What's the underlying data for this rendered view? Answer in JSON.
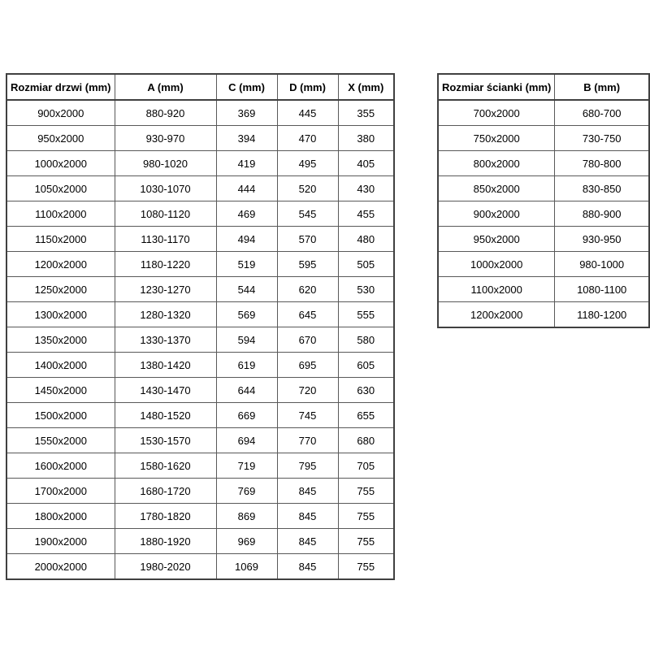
{
  "page": {
    "background_color": "#ffffff",
    "border_color": "#595959",
    "outer_border_color": "#404040",
    "text_color": "#000000"
  },
  "door_table": {
    "headers": [
      "Rozmiar drzwi (mm)",
      "A (mm)",
      "C (mm)",
      "D (mm)",
      "X (mm)"
    ],
    "rows": [
      [
        "900x2000",
        "880-920",
        "369",
        "445",
        "355"
      ],
      [
        "950x2000",
        "930-970",
        "394",
        "470",
        "380"
      ],
      [
        "1000x2000",
        "980-1020",
        "419",
        "495",
        "405"
      ],
      [
        "1050x2000",
        "1030-1070",
        "444",
        "520",
        "430"
      ],
      [
        "1100x2000",
        "1080-1120",
        "469",
        "545",
        "455"
      ],
      [
        "1150x2000",
        "1130-1170",
        "494",
        "570",
        "480"
      ],
      [
        "1200x2000",
        "1180-1220",
        "519",
        "595",
        "505"
      ],
      [
        "1250x2000",
        "1230-1270",
        "544",
        "620",
        "530"
      ],
      [
        "1300x2000",
        "1280-1320",
        "569",
        "645",
        "555"
      ],
      [
        "1350x2000",
        "1330-1370",
        "594",
        "670",
        "580"
      ],
      [
        "1400x2000",
        "1380-1420",
        "619",
        "695",
        "605"
      ],
      [
        "1450x2000",
        "1430-1470",
        "644",
        "720",
        "630"
      ],
      [
        "1500x2000",
        "1480-1520",
        "669",
        "745",
        "655"
      ],
      [
        "1550x2000",
        "1530-1570",
        "694",
        "770",
        "680"
      ],
      [
        "1600x2000",
        "1580-1620",
        "719",
        "795",
        "705"
      ],
      [
        "1700x2000",
        "1680-1720",
        "769",
        "845",
        "755"
      ],
      [
        "1800x2000",
        "1780-1820",
        "869",
        "845",
        "755"
      ],
      [
        "1900x2000",
        "1880-1920",
        "969",
        "845",
        "755"
      ],
      [
        "2000x2000",
        "1980-2020",
        "1069",
        "845",
        "755"
      ]
    ]
  },
  "wall_table": {
    "headers": [
      "Rozmiar ścianki (mm)",
      "B (mm)"
    ],
    "rows": [
      [
        "700x2000",
        "680-700"
      ],
      [
        "750x2000",
        "730-750"
      ],
      [
        "800x2000",
        "780-800"
      ],
      [
        "850x2000",
        "830-850"
      ],
      [
        "900x2000",
        "880-900"
      ],
      [
        "950x2000",
        "930-950"
      ],
      [
        "1000x2000",
        "980-1000"
      ],
      [
        "1100x2000",
        "1080-1100"
      ],
      [
        "1200x2000",
        "1180-1200"
      ]
    ]
  }
}
